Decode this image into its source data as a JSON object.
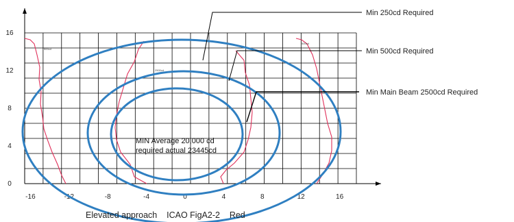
{
  "diagram": {
    "caption": "Elevated approach    ICAO FigA2-2    Red",
    "x_axis": {
      "ticks": [
        -16,
        -12,
        -8,
        -4,
        0,
        4,
        8,
        12,
        16
      ]
    },
    "y_axis": {
      "ticks": [
        0,
        4,
        8,
        12,
        16
      ]
    },
    "callouts": [
      {
        "text": "Min 250cd   Required"
      },
      {
        "text": "Min 500cd   Required"
      },
      {
        "text": "Min Main Beam 2500cd Required"
      }
    ],
    "center_note": {
      "line1": "MIN Average  20,000 cd",
      "line2": "required actual 23445cd"
    },
    "small_labels": [
      "500cd",
      "500cd",
      "2500cd"
    ],
    "colors": {
      "ellipse": "#2f7fc1",
      "isocandela": "#e0305a",
      "grid": "#000000"
    }
  }
}
